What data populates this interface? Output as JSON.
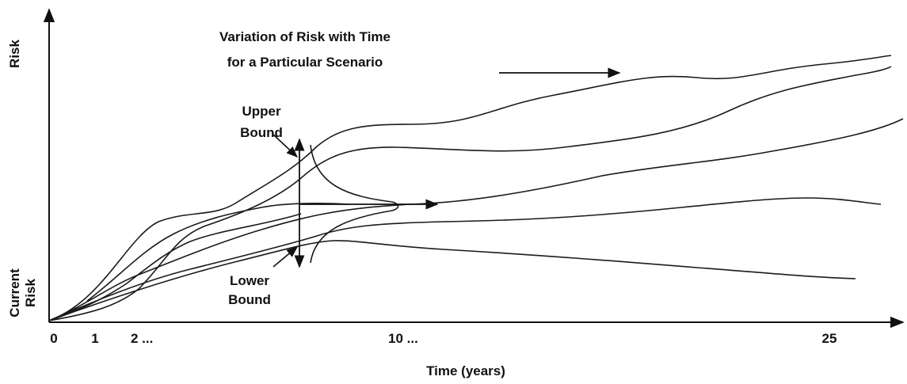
{
  "title": {
    "line1": "Variation of Risk with Time",
    "line2": "for a Particular Scenario"
  },
  "y_axis": {
    "top_label": "Risk",
    "bottom_label": {
      "line1": "Current",
      "line2": "Risk"
    }
  },
  "x_axis": {
    "label": "Time (years)",
    "ticks": [
      "0",
      "1",
      "2 ...",
      "10 ...",
      "25"
    ]
  },
  "annotations": {
    "upper": {
      "line1": "Upper",
      "line2": "Bound"
    },
    "lower": {
      "line1": "Lower",
      "line2": "Bound"
    }
  }
}
